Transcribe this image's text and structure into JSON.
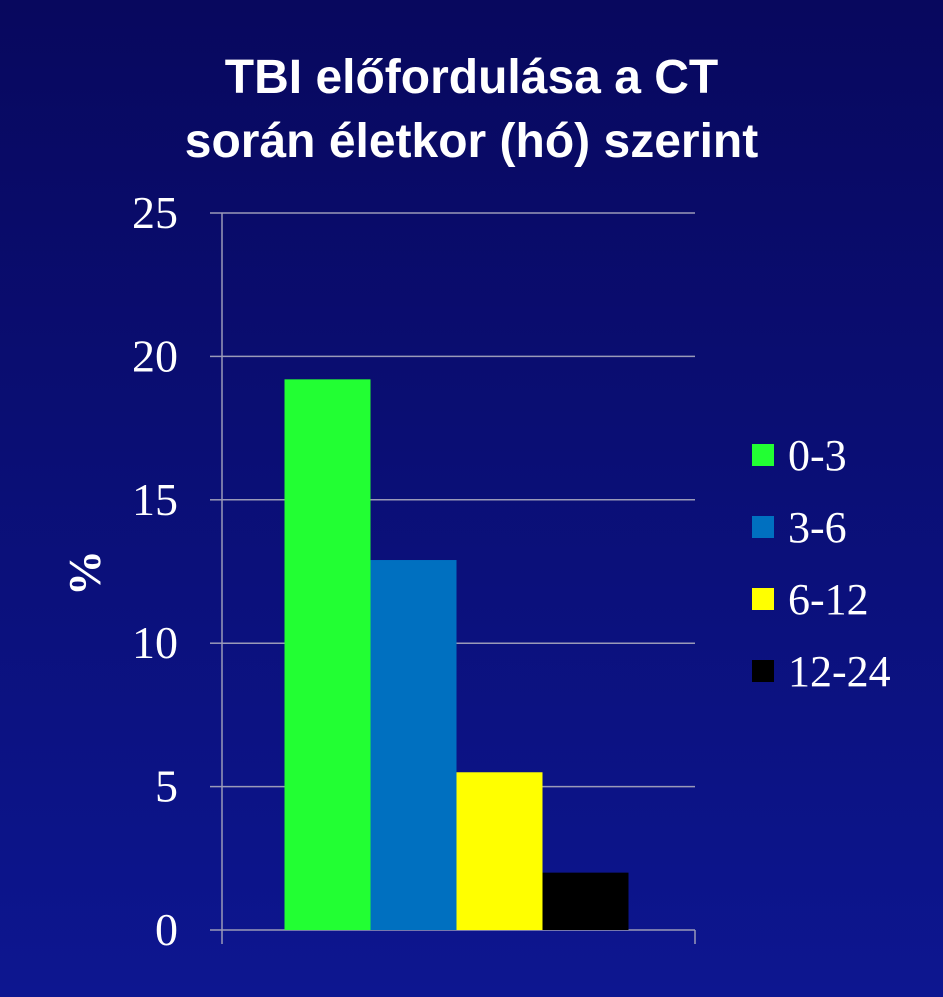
{
  "chart_data": {
    "type": "bar",
    "title_lines": [
      "TBI előfordulása a CT",
      "során életkor (hó) szerint"
    ],
    "xlabel": "",
    "ylabel": "%",
    "ylim": [
      0,
      25
    ],
    "yticks": [
      0,
      5,
      10,
      15,
      20,
      25
    ],
    "grid": true,
    "legend_position": "right",
    "series": [
      {
        "name": "0-3",
        "values": [
          19.2
        ],
        "color": "#22ff33"
      },
      {
        "name": "3-6",
        "values": [
          12.9
        ],
        "color": "#0070c0"
      },
      {
        "name": "6-12",
        "values": [
          5.5
        ],
        "color": "#ffff00"
      },
      {
        "name": "12-24",
        "values": [
          2.0
        ],
        "color": "#000000"
      }
    ]
  }
}
